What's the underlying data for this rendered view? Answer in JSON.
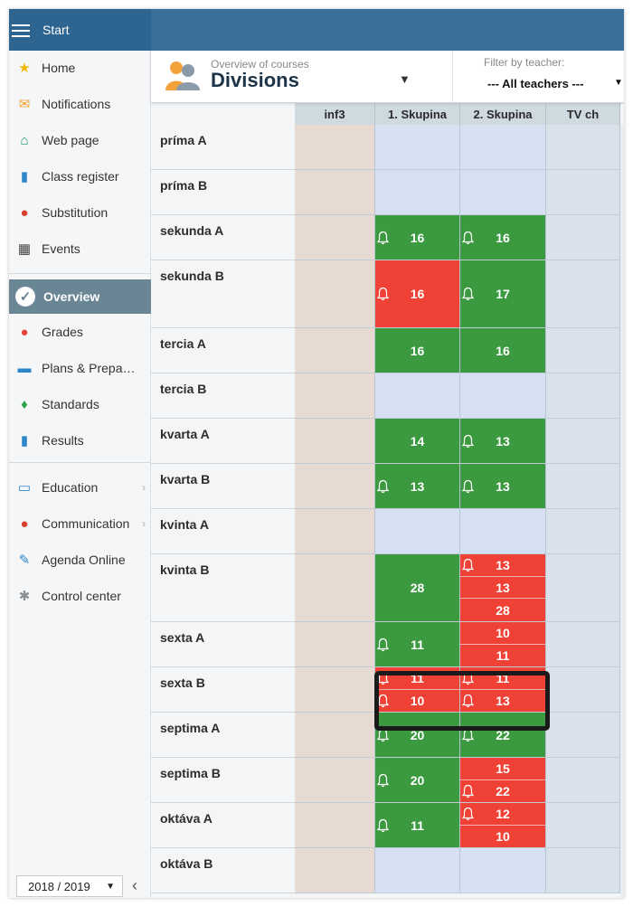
{
  "topbar": {
    "menu_label": "Start"
  },
  "sidebar": {
    "items": [
      {
        "label": "Home",
        "icon": "star-icon",
        "glyph": "★",
        "color": "#f2b705"
      },
      {
        "label": "Notifications",
        "icon": "envelope-icon",
        "glyph": "✉",
        "color": "#f0a030"
      },
      {
        "label": "Web page",
        "icon": "house-icon",
        "glyph": "⌂",
        "color": "#1e9a6a"
      },
      {
        "label": "Class register",
        "icon": "book-icon",
        "glyph": "▮",
        "color": "#2e86c8"
      },
      {
        "label": "Substitution",
        "icon": "person-icon",
        "glyph": "●",
        "color": "#d9412f"
      },
      {
        "label": "Events",
        "icon": "calendar-icon",
        "glyph": "▦",
        "color": "#444444"
      },
      {
        "label": "Overview",
        "icon": "checkmark-icon",
        "glyph": "✓",
        "color": "#ffffff"
      },
      {
        "label": "Grades",
        "icon": "grades-icon",
        "glyph": "●",
        "color": "#e2463a"
      },
      {
        "label": "Plans & Preparations",
        "icon": "briefcase-icon",
        "glyph": "▬",
        "color": "#2e86c8"
      },
      {
        "label": "Standards",
        "icon": "shield-icon",
        "glyph": "♦",
        "color": "#2aa04a"
      },
      {
        "label": "Results",
        "icon": "bar-chart-icon",
        "glyph": "▮",
        "color": "#2e86c8"
      },
      {
        "label": "Education",
        "icon": "open-book-icon",
        "glyph": "▭",
        "color": "#2e86c8"
      },
      {
        "label": "Communication",
        "icon": "chat-icon",
        "glyph": "●",
        "color": "#d9412f"
      },
      {
        "label": "Agenda Online",
        "icon": "pen-icon",
        "glyph": "✎",
        "color": "#2e86c8"
      },
      {
        "label": "Control center",
        "icon": "gear-icon",
        "glyph": "✱",
        "color": "#8a8f94"
      }
    ],
    "year": "2018 / 2019"
  },
  "header": {
    "subtitle": "Overview of courses",
    "title": "Divisions",
    "filter_label": "Filter by teacher:",
    "filter_value": "--- All teachers ---"
  },
  "columns": [
    "inf3",
    "1. Skupina",
    "2. Skupina",
    "TV ch"
  ],
  "rows": [
    {
      "name": "príma A",
      "s1": [],
      "s2": []
    },
    {
      "name": "príma B",
      "s1": [],
      "s2": []
    },
    {
      "name": "sekunda A",
      "s1": [
        {
          "v": "16",
          "c": "green",
          "bell": true
        }
      ],
      "s2": [
        {
          "v": "16",
          "c": "green",
          "bell": true
        }
      ]
    },
    {
      "name": "sekunda B",
      "s1": [
        {
          "v": "16",
          "c": "red",
          "bell": true
        }
      ],
      "s2": [
        {
          "v": "17",
          "c": "green",
          "bell": true
        }
      ]
    },
    {
      "name": "tercia A",
      "s1": [
        {
          "v": "16",
          "c": "green",
          "bell": false
        }
      ],
      "s2": [
        {
          "v": "16",
          "c": "green",
          "bell": false
        }
      ]
    },
    {
      "name": "tercia B",
      "s1": [],
      "s2": []
    },
    {
      "name": "kvarta A",
      "s1": [
        {
          "v": "14",
          "c": "green",
          "bell": false
        }
      ],
      "s2": [
        {
          "v": "13",
          "c": "green",
          "bell": true
        }
      ]
    },
    {
      "name": "kvarta B",
      "s1": [
        {
          "v": "13",
          "c": "green",
          "bell": true
        }
      ],
      "s2": [
        {
          "v": "13",
          "c": "green",
          "bell": true
        }
      ]
    },
    {
      "name": "kvinta A",
      "s1": [],
      "s2": []
    },
    {
      "name": "kvinta B",
      "s1": [
        {
          "v": "28",
          "c": "green",
          "bell": false
        }
      ],
      "s2": [
        {
          "v": "13",
          "c": "red",
          "bell": true
        },
        {
          "v": "13",
          "c": "red",
          "bell": false
        },
        {
          "v": "28",
          "c": "red",
          "bell": false
        }
      ]
    },
    {
      "name": "sexta A",
      "s1": [
        {
          "v": "11",
          "c": "green",
          "bell": true
        }
      ],
      "s2": [
        {
          "v": "10",
          "c": "red",
          "bell": false
        },
        {
          "v": "11",
          "c": "red",
          "bell": false
        }
      ]
    },
    {
      "name": "sexta B",
      "s1": [
        {
          "v": "11",
          "c": "red",
          "bell": true
        },
        {
          "v": "10",
          "c": "red",
          "bell": true
        }
      ],
      "s2": [
        {
          "v": "11",
          "c": "red",
          "bell": true
        },
        {
          "v": "13",
          "c": "red",
          "bell": true
        }
      ]
    },
    {
      "name": "septima A",
      "s1": [
        {
          "v": "20",
          "c": "green",
          "bell": true
        }
      ],
      "s2": [
        {
          "v": "22",
          "c": "green",
          "bell": true
        }
      ]
    },
    {
      "name": "septima B",
      "s1": [
        {
          "v": "20",
          "c": "green",
          "bell": true
        }
      ],
      "s2": [
        {
          "v": "15",
          "c": "red",
          "bell": false
        },
        {
          "v": "22",
          "c": "red",
          "bell": true
        }
      ]
    },
    {
      "name": "oktáva A",
      "s1": [
        {
          "v": "11",
          "c": "green",
          "bell": true
        }
      ],
      "s2": [
        {
          "v": "12",
          "c": "red",
          "bell": true
        },
        {
          "v": "10",
          "c": "red",
          "bell": false
        }
      ]
    },
    {
      "name": "oktáva B",
      "s1": [],
      "s2": []
    }
  ]
}
